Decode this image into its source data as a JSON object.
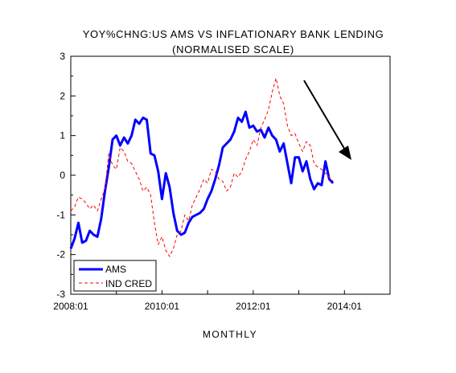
{
  "chart_data": {
    "type": "line",
    "title": "YOY%CHNG:US AMS VS INFLATIONARY BANK LENDING",
    "subtitle": "(NORMALISED SCALE)",
    "xlabel": "MONTHLY",
    "ylabel": "",
    "x_range": [
      "2008-01",
      "2014-12"
    ],
    "ylim": [
      -3,
      3
    ],
    "x_ticks": [
      "2008:01",
      "2010:01",
      "2012:01",
      "2014:01"
    ],
    "y_ticks": [
      "3",
      "2",
      "1",
      "0",
      "-1",
      "-2",
      "-3"
    ],
    "grid": false,
    "legend_position": "bottom-left",
    "annotation": "downward-arrow",
    "series": [
      {
        "name": "AMS",
        "color": "#0000ff",
        "style": "solid",
        "points": [
          [
            "2008-01",
            -1.85
          ],
          [
            "2008-02",
            -1.6
          ],
          [
            "2008-03",
            -1.2
          ],
          [
            "2008-04",
            -1.7
          ],
          [
            "2008-05",
            -1.65
          ],
          [
            "2008-06",
            -1.4
          ],
          [
            "2008-07",
            -1.5
          ],
          [
            "2008-08",
            -1.55
          ],
          [
            "2008-09",
            -1.1
          ],
          [
            "2008-10",
            -0.4
          ],
          [
            "2008-11",
            0.2
          ],
          [
            "2008-12",
            0.9
          ],
          [
            "2009-01",
            1.0
          ],
          [
            "2009-02",
            0.75
          ],
          [
            "2009-03",
            0.95
          ],
          [
            "2009-04",
            0.8
          ],
          [
            "2009-05",
            1.0
          ],
          [
            "2009-06",
            1.4
          ],
          [
            "2009-07",
            1.3
          ],
          [
            "2009-08",
            1.45
          ],
          [
            "2009-09",
            1.4
          ],
          [
            "2009-10",
            0.55
          ],
          [
            "2009-11",
            0.5
          ],
          [
            "2009-12",
            0.1
          ],
          [
            "2010-01",
            -0.6
          ],
          [
            "2010-02",
            0.05
          ],
          [
            "2010-03",
            -0.3
          ],
          [
            "2010-04",
            -0.95
          ],
          [
            "2010-05",
            -1.4
          ],
          [
            "2010-06",
            -1.5
          ],
          [
            "2010-07",
            -1.45
          ],
          [
            "2010-08",
            -1.2
          ],
          [
            "2010-09",
            -1.05
          ],
          [
            "2010-10",
            -1.0
          ],
          [
            "2010-11",
            -0.95
          ],
          [
            "2010-12",
            -0.85
          ],
          [
            "2011-01",
            -0.6
          ],
          [
            "2011-02",
            -0.4
          ],
          [
            "2011-03",
            -0.1
          ],
          [
            "2011-04",
            0.25
          ],
          [
            "2011-05",
            0.7
          ],
          [
            "2011-06",
            0.8
          ],
          [
            "2011-07",
            0.9
          ],
          [
            "2011-08",
            1.1
          ],
          [
            "2011-09",
            1.45
          ],
          [
            "2011-10",
            1.35
          ],
          [
            "2011-11",
            1.6
          ],
          [
            "2011-12",
            1.2
          ],
          [
            "2012-01",
            1.25
          ],
          [
            "2012-02",
            1.1
          ],
          [
            "2012-03",
            1.15
          ],
          [
            "2012-04",
            0.95
          ],
          [
            "2012-05",
            1.2
          ],
          [
            "2012-06",
            1.0
          ],
          [
            "2012-07",
            0.9
          ],
          [
            "2012-08",
            0.6
          ],
          [
            "2012-09",
            0.8
          ],
          [
            "2012-10",
            0.3
          ],
          [
            "2012-11",
            -0.2
          ],
          [
            "2012-12",
            0.45
          ],
          [
            "2013-01",
            0.45
          ],
          [
            "2013-02",
            0.1
          ],
          [
            "2013-03",
            0.35
          ],
          [
            "2013-04",
            -0.1
          ],
          [
            "2013-05",
            -0.35
          ],
          [
            "2013-06",
            -0.2
          ],
          [
            "2013-07",
            -0.25
          ],
          [
            "2013-08",
            0.35
          ],
          [
            "2013-09",
            -0.1
          ],
          [
            "2013-10",
            -0.2
          ]
        ]
      },
      {
        "name": "IND CRED",
        "color": "#ff0000",
        "style": "dashed",
        "points": [
          [
            "2008-01",
            -0.9
          ],
          [
            "2008-02",
            -0.8
          ],
          [
            "2008-03",
            -0.55
          ],
          [
            "2008-04",
            -0.6
          ],
          [
            "2008-05",
            -0.7
          ],
          [
            "2008-06",
            -0.85
          ],
          [
            "2008-07",
            -0.75
          ],
          [
            "2008-08",
            -0.9
          ],
          [
            "2008-09",
            -0.6
          ],
          [
            "2008-10",
            -0.35
          ],
          [
            "2008-11",
            0.55
          ],
          [
            "2008-12",
            0.25
          ],
          [
            "2009-01",
            0.15
          ],
          [
            "2009-02",
            0.7
          ],
          [
            "2009-03",
            0.6
          ],
          [
            "2009-04",
            0.35
          ],
          [
            "2009-05",
            0.3
          ],
          [
            "2009-06",
            0.1
          ],
          [
            "2009-07",
            -0.1
          ],
          [
            "2009-08",
            -0.4
          ],
          [
            "2009-09",
            -0.3
          ],
          [
            "2009-10",
            -0.5
          ],
          [
            "2009-11",
            -1.2
          ],
          [
            "2009-12",
            -1.75
          ],
          [
            "2010-01",
            -1.55
          ],
          [
            "2010-02",
            -1.9
          ],
          [
            "2010-03",
            -2.05
          ],
          [
            "2010-04",
            -1.85
          ],
          [
            "2010-05",
            -1.5
          ],
          [
            "2010-06",
            -1.4
          ],
          [
            "2010-07",
            -1.0
          ],
          [
            "2010-08",
            -1.15
          ],
          [
            "2010-09",
            -0.75
          ],
          [
            "2010-10",
            -0.55
          ],
          [
            "2010-11",
            -0.35
          ],
          [
            "2010-12",
            -0.1
          ],
          [
            "2011-01",
            -0.2
          ],
          [
            "2011-02",
            0.15
          ],
          [
            "2011-03",
            0.1
          ],
          [
            "2011-04",
            -0.1
          ],
          [
            "2011-05",
            -0.15
          ],
          [
            "2011-06",
            -0.4
          ],
          [
            "2011-07",
            -0.3
          ],
          [
            "2011-08",
            0.05
          ],
          [
            "2011-09",
            -0.05
          ],
          [
            "2011-10",
            0.1
          ],
          [
            "2011-11",
            0.4
          ],
          [
            "2011-12",
            0.6
          ],
          [
            "2012-01",
            0.9
          ],
          [
            "2012-02",
            0.75
          ],
          [
            "2012-03",
            1.2
          ],
          [
            "2012-04",
            1.4
          ],
          [
            "2012-05",
            1.65
          ],
          [
            "2012-06",
            2.1
          ],
          [
            "2012-07",
            2.45
          ],
          [
            "2012-08",
            2.0
          ],
          [
            "2012-09",
            1.8
          ],
          [
            "2012-10",
            1.25
          ],
          [
            "2012-11",
            1.0
          ],
          [
            "2012-12",
            1.05
          ],
          [
            "2013-01",
            0.8
          ],
          [
            "2013-02",
            0.6
          ],
          [
            "2013-03",
            0.85
          ],
          [
            "2013-04",
            0.75
          ],
          [
            "2013-05",
            0.3
          ],
          [
            "2013-06",
            0.2
          ],
          [
            "2013-07",
            0.15
          ],
          [
            "2013-08",
            0.05
          ],
          [
            "2013-09",
            -0.05
          ],
          [
            "2013-10",
            -0.15
          ]
        ]
      }
    ]
  }
}
